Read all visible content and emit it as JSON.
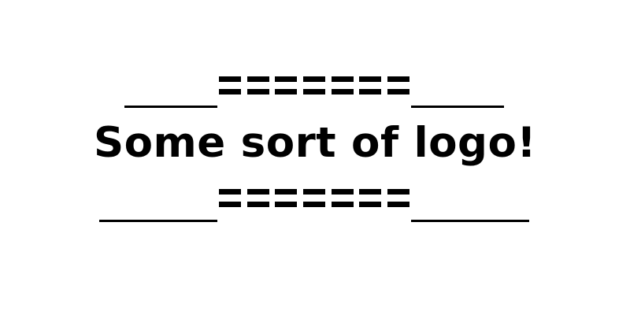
{
  "logo": {
    "text": "Some sort of logo!",
    "top_decoration": "____=======____",
    "bottom_decoration": "_____=======_____"
  },
  "colors": {
    "background": "#ffffff",
    "ink": "#000000"
  }
}
